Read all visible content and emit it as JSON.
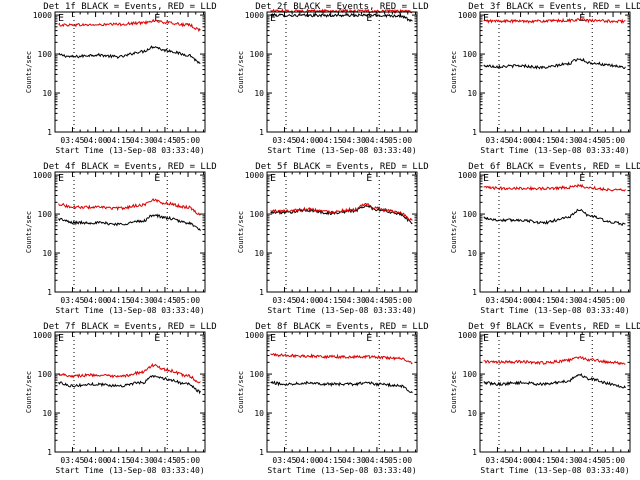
{
  "figure": {
    "start_time_label": "Start Time (13-Sep-08 03:33:40)",
    "ylabel": "Counts/sec",
    "y_ticks": [
      "1",
      "10",
      "100",
      "1000"
    ],
    "x_ticks": [
      "03:45",
      "04:00",
      "04:15",
      "04:30",
      "04:45",
      "05:00"
    ],
    "marker_label": "E",
    "colors": {
      "events": "#000000",
      "lld": "#dd0000"
    }
  },
  "chart_data": [
    {
      "type": "line",
      "title": "Det 1f BLACK = Events, RED = LLD",
      "xlabel": "Start Time (13-Sep-08 03:33:40)",
      "ylabel": "Counts/sec",
      "x_ticks": [
        "03:45",
        "04:00",
        "04:15",
        "04:30",
        "04:45",
        "05:00"
      ],
      "y_scale": "log",
      "ylim": [
        1,
        1200
      ],
      "x": [
        "03:36",
        "03:45",
        "04:00",
        "04:15",
        "04:30",
        "04:38",
        "04:45",
        "05:00",
        "05:08"
      ],
      "series": [
        {
          "name": "Events",
          "values": [
            95,
            85,
            95,
            85,
            115,
            155,
            125,
            95,
            60
          ]
        },
        {
          "name": "LLD",
          "values": [
            560,
            560,
            560,
            580,
            630,
            720,
            640,
            560,
            420
          ]
        }
      ]
    },
    {
      "type": "line",
      "title": "Det 2f BLACK = Events, RED = LLD",
      "xlabel": "Start Time (13-Sep-08 03:33:40)",
      "ylabel": "Counts/sec",
      "x_ticks": [
        "03:45",
        "04:00",
        "04:15",
        "04:30",
        "04:45",
        "05:00"
      ],
      "y_scale": "log",
      "ylim": [
        1,
        1200
      ],
      "x": [
        "03:36",
        "03:45",
        "04:00",
        "04:15",
        "04:30",
        "04:38",
        "04:45",
        "05:00",
        "05:08"
      ],
      "series": [
        {
          "name": "Events",
          "values": [
            1000,
            980,
            980,
            980,
            990,
            980,
            980,
            960,
            700
          ]
        },
        {
          "name": "LLD",
          "values": [
            1300,
            1280,
            1280,
            1280,
            1280,
            1270,
            1260,
            1250,
            1200
          ]
        }
      ]
    },
    {
      "type": "line",
      "title": "Det 3f BLACK = Events, RED = LLD",
      "xlabel": "Start Time (13-Sep-08 03:33:40)",
      "ylabel": "Counts/sec",
      "x_ticks": [
        "03:45",
        "04:00",
        "04:15",
        "04:30",
        "04:45",
        "05:00"
      ],
      "y_scale": "log",
      "ylim": [
        1,
        1200
      ],
      "x": [
        "03:36",
        "03:45",
        "04:00",
        "04:15",
        "04:30",
        "04:38",
        "04:45",
        "05:00",
        "05:08"
      ],
      "series": [
        {
          "name": "Events",
          "values": [
            50,
            48,
            50,
            45,
            55,
            75,
            60,
            50,
            45
          ]
        },
        {
          "name": "LLD",
          "values": [
            700,
            700,
            700,
            700,
            720,
            760,
            720,
            700,
            690
          ]
        }
      ]
    },
    {
      "type": "line",
      "title": "Det 4f BLACK = Events, RED = LLD",
      "xlabel": "Start Time (13-Sep-08 03:33:40)",
      "ylabel": "Counts/sec",
      "x_ticks": [
        "03:45",
        "04:00",
        "04:15",
        "04:30",
        "04:45",
        "05:00"
      ],
      "y_scale": "log",
      "ylim": [
        1,
        1200
      ],
      "x": [
        "03:36",
        "03:45",
        "04:00",
        "04:15",
        "04:30",
        "04:38",
        "04:45",
        "05:00",
        "05:08"
      ],
      "series": [
        {
          "name": "Events",
          "values": [
            75,
            60,
            60,
            55,
            65,
            95,
            80,
            60,
            40
          ]
        },
        {
          "name": "LLD",
          "values": [
            180,
            150,
            150,
            140,
            170,
            230,
            190,
            150,
            100
          ]
        }
      ]
    },
    {
      "type": "line",
      "title": "Det 5f BLACK = Events, RED = LLD",
      "xlabel": "Start Time (13-Sep-08 03:33:40)",
      "ylabel": "Counts/sec",
      "x_ticks": [
        "03:45",
        "04:00",
        "04:15",
        "04:30",
        "04:45",
        "05:00"
      ],
      "y_scale": "log",
      "ylim": [
        1,
        1200
      ],
      "x": [
        "03:36",
        "03:45",
        "04:00",
        "04:15",
        "04:30",
        "04:38",
        "04:45",
        "05:00",
        "05:08"
      ],
      "series": [
        {
          "name": "Events",
          "values": [
            110,
            110,
            125,
            105,
            120,
            160,
            130,
            100,
            60
          ]
        },
        {
          "name": "LLD",
          "values": [
            120,
            120,
            135,
            115,
            130,
            175,
            140,
            110,
            70
          ]
        }
      ]
    },
    {
      "type": "line",
      "title": "Det 6f BLACK = Events, RED = LLD",
      "xlabel": "Start Time (13-Sep-08 03:33:40)",
      "ylabel": "Counts/sec",
      "x_ticks": [
        "03:45",
        "04:00",
        "04:15",
        "04:30",
        "04:45",
        "05:00"
      ],
      "y_scale": "log",
      "ylim": [
        1,
        1200
      ],
      "x": [
        "03:36",
        "03:45",
        "04:00",
        "04:15",
        "04:30",
        "04:38",
        "04:45",
        "05:00",
        "05:08"
      ],
      "series": [
        {
          "name": "Events",
          "values": [
            80,
            70,
            70,
            60,
            80,
            125,
            90,
            60,
            55
          ]
        },
        {
          "name": "LLD",
          "values": [
            480,
            460,
            460,
            450,
            480,
            530,
            470,
            420,
            420
          ]
        }
      ]
    },
    {
      "type": "line",
      "title": "Det 7f BLACK = Events, RED = LLD",
      "xlabel": "Start Time (13-Sep-08 03:33:40)",
      "ylabel": "Counts/sec",
      "x_ticks": [
        "03:45",
        "04:00",
        "04:15",
        "04:30",
        "04:45",
        "05:00"
      ],
      "y_scale": "log",
      "ylim": [
        1,
        1200
      ],
      "x": [
        "03:36",
        "03:45",
        "04:00",
        "04:15",
        "04:30",
        "04:38",
        "04:45",
        "05:00",
        "05:08"
      ],
      "series": [
        {
          "name": "Events",
          "values": [
            60,
            50,
            55,
            50,
            60,
            90,
            75,
            55,
            35
          ]
        },
        {
          "name": "LLD",
          "values": [
            100,
            90,
            95,
            85,
            110,
            170,
            130,
            90,
            60
          ]
        }
      ]
    },
    {
      "type": "line",
      "title": "Det 8f BLACK = Events, RED = LLD",
      "xlabel": "Start Time (13-Sep-08 03:33:40)",
      "ylabel": "Counts/sec",
      "x_ticks": [
        "03:45",
        "04:00",
        "04:15",
        "04:30",
        "04:45",
        "05:00"
      ],
      "y_scale": "log",
      "ylim": [
        1,
        1200
      ],
      "x": [
        "03:36",
        "03:45",
        "04:00",
        "04:15",
        "04:30",
        "04:38",
        "04:45",
        "05:00",
        "05:08"
      ],
      "series": [
        {
          "name": "Events",
          "values": [
            60,
            55,
            60,
            55,
            55,
            60,
            55,
            50,
            35
          ]
        },
        {
          "name": "LLD",
          "values": [
            320,
            300,
            290,
            280,
            275,
            280,
            270,
            250,
            200
          ]
        }
      ]
    },
    {
      "type": "line",
      "title": "Det 9f BLACK = Events, RED = LLD",
      "xlabel": "Start Time (13-Sep-08 03:33:40)",
      "ylabel": "Counts/sec",
      "x_ticks": [
        "03:45",
        "04:00",
        "04:15",
        "04:30",
        "04:45",
        "05:00"
      ],
      "y_scale": "log",
      "ylim": [
        1,
        1200
      ],
      "x": [
        "03:36",
        "03:45",
        "04:00",
        "04:15",
        "04:30",
        "04:38",
        "04:45",
        "05:00",
        "05:08"
      ],
      "series": [
        {
          "name": "Events",
          "values": [
            60,
            55,
            60,
            55,
            65,
            95,
            75,
            55,
            45
          ]
        },
        {
          "name": "LLD",
          "values": [
            210,
            200,
            205,
            195,
            220,
            270,
            230,
            200,
            180
          ]
        }
      ]
    }
  ]
}
